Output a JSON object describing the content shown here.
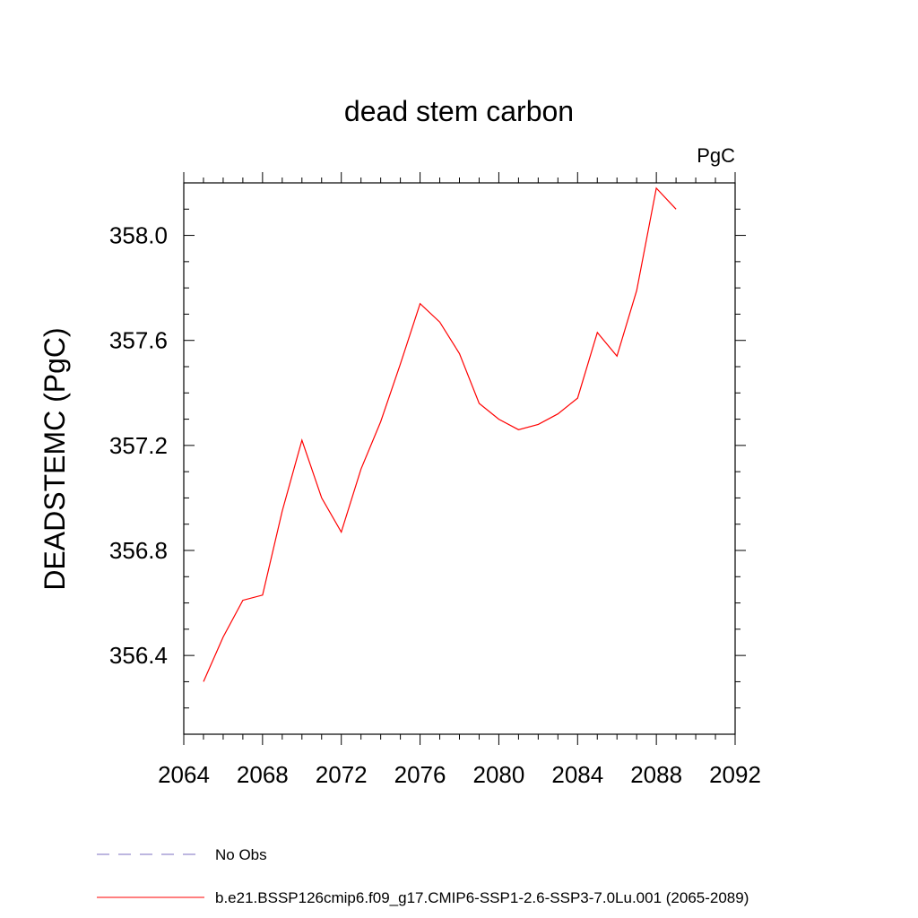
{
  "chart_data": {
    "type": "line",
    "title": "dead stem carbon",
    "units": "PgC",
    "xlabel": "",
    "ylabel": "DEADSTEMC  (PgC)",
    "xlim": [
      2064,
      2092
    ],
    "ylim": [
      356.1,
      358.2
    ],
    "xticks": [
      2064,
      2068,
      2072,
      2076,
      2080,
      2084,
      2088,
      2092
    ],
    "xtick_labels": [
      "2064",
      "2068",
      "2072",
      "2076",
      "2080",
      "2084",
      "2088",
      "2092"
    ],
    "yticks": [
      356.4,
      356.8,
      357.2,
      357.6,
      358.0
    ],
    "ytick_labels": [
      "356.4",
      "356.8",
      "357.2",
      "357.6",
      "358.0"
    ],
    "grid": false,
    "legend_position": "bottom-left, below plot",
    "series": [
      {
        "name": "b.e21.BSSP126cmip6.f09_g17.CMIP6-SSP1-2.6-SSP3-7.0Lu.001 (2065-2089)",
        "color": "#ff0000",
        "style": "solid",
        "x": [
          2065,
          2066,
          2067,
          2068,
          2069,
          2070,
          2071,
          2072,
          2073,
          2074,
          2075,
          2076,
          2077,
          2078,
          2079,
          2080,
          2081,
          2082,
          2083,
          2084,
          2085,
          2086,
          2087,
          2088,
          2089
        ],
        "values": [
          356.3,
          356.47,
          356.61,
          356.63,
          356.95,
          357.22,
          357.0,
          356.87,
          357.11,
          357.29,
          357.51,
          357.74,
          357.67,
          357.55,
          357.36,
          357.3,
          357.26,
          357.28,
          357.32,
          357.38,
          357.63,
          357.54,
          357.79,
          358.18,
          358.1
        ]
      }
    ],
    "legend": [
      {
        "label": "No Obs",
        "color": "#7b6fc0",
        "style": "dashed"
      },
      {
        "label": "b.e21.BSSP126cmip6.f09_g17.CMIP6-SSP1-2.6-SSP3-7.0Lu.001 (2065-2089)",
        "color": "#ff0000",
        "style": "solid"
      }
    ]
  }
}
